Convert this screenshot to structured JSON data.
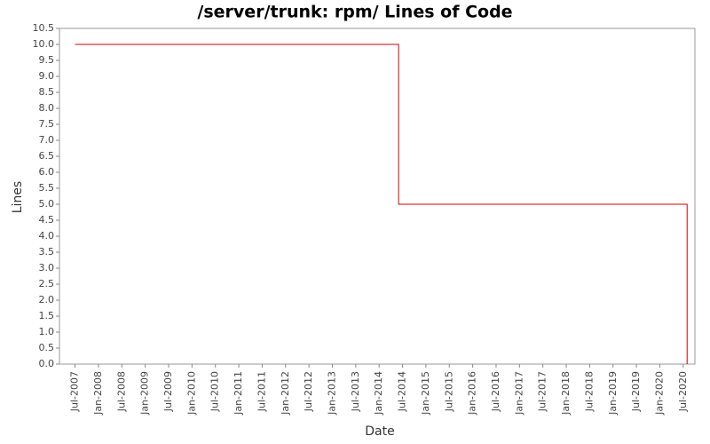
{
  "chart_data": {
    "type": "line",
    "title": "/server/trunk: rpm/ Lines of Code",
    "x_label": "Date",
    "y_label": "Lines",
    "x": [
      "2007-07",
      "2014-06",
      "2014-06",
      "2020-08",
      "2020-08"
    ],
    "series": [
      {
        "name": "Lines",
        "color": "#cc0000",
        "values": [
          10,
          10,
          5,
          5,
          0
        ]
      }
    ],
    "xlim": [
      "2007-03",
      "2020-10"
    ],
    "xticks": [
      {
        "value": "2007-07",
        "label": "Jul-2007"
      },
      {
        "value": "2008-01",
        "label": "Jan-2008"
      },
      {
        "value": "2008-07",
        "label": "Jul-2008"
      },
      {
        "value": "2009-01",
        "label": "Jan-2009"
      },
      {
        "value": "2009-07",
        "label": "Jul-2009"
      },
      {
        "value": "2010-01",
        "label": "Jan-2010"
      },
      {
        "value": "2010-07",
        "label": "Jul-2010"
      },
      {
        "value": "2011-01",
        "label": "Jan-2011"
      },
      {
        "value": "2011-07",
        "label": "Jul-2011"
      },
      {
        "value": "2012-01",
        "label": "Jan-2012"
      },
      {
        "value": "2012-07",
        "label": "Jul-2012"
      },
      {
        "value": "2013-01",
        "label": "Jan-2013"
      },
      {
        "value": "2013-07",
        "label": "Jul-2013"
      },
      {
        "value": "2014-01",
        "label": "Jan-2014"
      },
      {
        "value": "2014-07",
        "label": "Jul-2014"
      },
      {
        "value": "2015-01",
        "label": "Jan-2015"
      },
      {
        "value": "2015-07",
        "label": "Jul-2015"
      },
      {
        "value": "2016-01",
        "label": "Jan-2016"
      },
      {
        "value": "2016-07",
        "label": "Jul-2016"
      },
      {
        "value": "2017-01",
        "label": "Jan-2017"
      },
      {
        "value": "2017-07",
        "label": "Jul-2017"
      },
      {
        "value": "2018-01",
        "label": "Jan-2018"
      },
      {
        "value": "2018-07",
        "label": "Jul-2018"
      },
      {
        "value": "2019-01",
        "label": "Jan-2019"
      },
      {
        "value": "2019-07",
        "label": "Jul-2019"
      },
      {
        "value": "2020-01",
        "label": "Jan-2020"
      },
      {
        "value": "2020-07",
        "label": "Jul-2020"
      }
    ],
    "ylim": [
      0,
      10.5
    ],
    "yticks": [
      {
        "value": 0,
        "label": "0.0"
      },
      0.5,
      {
        "value": 1,
        "label": "1.0"
      },
      1.5,
      {
        "value": 2,
        "label": "2.0"
      },
      2.5,
      {
        "value": 3,
        "label": "3.0"
      },
      3.5,
      {
        "value": 4,
        "label": "4.0"
      },
      4.5,
      {
        "value": 5,
        "label": "5.0"
      },
      5.5,
      {
        "value": 6,
        "label": "6.0"
      },
      6.5,
      {
        "value": 7,
        "label": "7.0"
      },
      7.5,
      {
        "value": 8,
        "label": "8.0"
      },
      8.5,
      {
        "value": 9,
        "label": "9.0"
      },
      9.5,
      {
        "value": 10,
        "label": "10.0"
      },
      10.5
    ],
    "grid": false
  }
}
